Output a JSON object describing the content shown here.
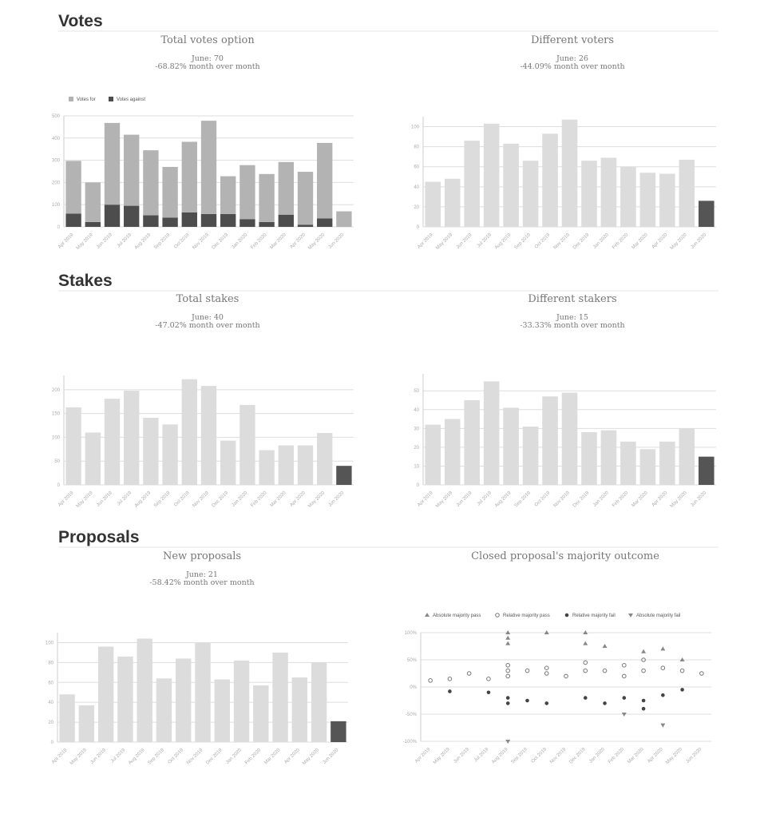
{
  "sections": [
    "Votes",
    "Stakes",
    "Proposals"
  ],
  "chart_data": [
    {
      "type": "stacked-bar",
      "title": "Total votes option",
      "annotations": [
        "June: 70",
        "-68.82% month over month"
      ],
      "categories": [
        "Apr 2019",
        "May 2019",
        "Jun 2019",
        "Jul 2019",
        "Aug 2019",
        "Sep 2019",
        "Oct 2019",
        "Nov 2019",
        "Dec 2019",
        "Jan 2020",
        "Feb 2020",
        "Mar 2020",
        "Apr 2020",
        "May 2020",
        "Jun 2020"
      ],
      "series": [
        {
          "name": "Votes for",
          "color": "#b3b3b3",
          "values": [
            237,
            178,
            368,
            320,
            293,
            228,
            318,
            420,
            170,
            243,
            216,
            237,
            238,
            340,
            70
          ]
        },
        {
          "name": "Votes against",
          "color": "#4d4d4d",
          "values": [
            60,
            22,
            100,
            95,
            52,
            42,
            65,
            58,
            58,
            35,
            22,
            55,
            10,
            38,
            0
          ]
        }
      ],
      "ylim": [
        0,
        500
      ],
      "yticks": [
        0,
        100,
        200,
        300,
        400,
        500
      ],
      "grid": true,
      "legend": "top-left"
    },
    {
      "type": "bar",
      "title": "Different voters",
      "annotations": [
        "June: 26",
        "-44.09% month over month"
      ],
      "categories": [
        "Apr 2019",
        "May 2019",
        "Jun 2019",
        "Jul 2019",
        "Aug 2019",
        "Sep 2019",
        "Oct 2019",
        "Nov 2019",
        "Dec 2019",
        "Jan 2020",
        "Feb 2020",
        "Mar 2020",
        "Apr 2020",
        "May 2020",
        "Jun 2020"
      ],
      "values": [
        45,
        48,
        86,
        103,
        83,
        66,
        93,
        107,
        66,
        69,
        60,
        54,
        53,
        67,
        26
      ],
      "color": "#dcdcdc",
      "last_color": "#555555",
      "ylim": [
        0,
        110
      ],
      "yticks": [
        0,
        20,
        40,
        60,
        80,
        100
      ],
      "grid": true
    },
    {
      "type": "bar",
      "title": "Total stakes",
      "annotations": [
        "June: 40",
        "-47.02% month over month"
      ],
      "categories": [
        "Apr 2019",
        "May 2019",
        "Jun 2019",
        "Jul 2019",
        "Aug 2019",
        "Sep 2019",
        "Oct 2019",
        "Nov 2019",
        "Dec 2019",
        "Jan 2020",
        "Feb 2020",
        "Mar 2020",
        "Apr 2020",
        "May 2020",
        "Jun 2020"
      ],
      "values": [
        163,
        110,
        181,
        198,
        141,
        127,
        222,
        208,
        93,
        168,
        73,
        83,
        83,
        109,
        40
      ],
      "color": "#dcdcdc",
      "last_color": "#555555",
      "ylim": [
        0,
        230
      ],
      "yticks": [
        0,
        50,
        100,
        150,
        200
      ],
      "grid": true
    },
    {
      "type": "bar",
      "title": "Different stakers",
      "annotations": [
        "June: 15",
        "-33.33% month over month"
      ],
      "categories": [
        "Apr 2019",
        "May 2019",
        "Jun 2019",
        "Jul 2019",
        "Aug 2019",
        "Sep 2019",
        "Oct 2019",
        "Nov 2019",
        "Dec 2019",
        "Jan 2020",
        "Feb 2020",
        "Mar 2020",
        "Apr 2020",
        "May 2020",
        "Jun 2020"
      ],
      "values": [
        32,
        35,
        45,
        55,
        41,
        31,
        47,
        49,
        28,
        29,
        23,
        19,
        23,
        30,
        15
      ],
      "color": "#dcdcdc",
      "last_color": "#555555",
      "ylim": [
        0,
        59
      ],
      "yticks": [
        0,
        10,
        20,
        30,
        40,
        50
      ],
      "grid": true
    },
    {
      "type": "bar",
      "title": "New proposals",
      "annotations": [
        "June: 21",
        "-58.42% month over month"
      ],
      "categories": [
        "Apr 2019",
        "May 2019",
        "Jun 2019",
        "Jul 2019",
        "Aug 2019",
        "Sep 2019",
        "Oct 2019",
        "Nov 2019",
        "Dec 2019",
        "Jan 2020",
        "Feb 2020",
        "Mar 2020",
        "Apr 2020",
        "May 2020",
        "Jun 2020"
      ],
      "values": [
        48,
        37,
        96,
        86,
        104,
        64,
        84,
        100,
        63,
        82,
        57,
        90,
        65,
        80,
        21
      ],
      "color": "#dcdcdc",
      "last_color": "#555555",
      "ylim": [
        0,
        110
      ],
      "yticks": [
        0,
        20,
        40,
        60,
        80,
        100
      ],
      "grid": true
    },
    {
      "type": "scatter",
      "title": "Closed proposal's majority outcome",
      "categories": [
        "Apr 2019",
        "May 2019",
        "Jun 2019",
        "Jul 2019",
        "Aug 2019",
        "Sep 2019",
        "Oct 2019",
        "Nov 2019",
        "Dec 2019",
        "Jan 2020",
        "Feb 2020",
        "Mar 2020",
        "Apr 2020",
        "May 2020",
        "Jun 2020"
      ],
      "series": [
        {
          "name": "Absolute majority pass",
          "color": "#888888",
          "marker": "triangle-up",
          "x": [
            "Aug 2019",
            "Aug 2019",
            "Aug 2019",
            "Oct 2019",
            "Dec 2019",
            "Dec 2019",
            "Jan 2020",
            "Mar 2020",
            "Apr 2020",
            "May 2020"
          ],
          "values": [
            100,
            90,
            80,
            100,
            100,
            80,
            75,
            65,
            70,
            50
          ]
        },
        {
          "name": "Relative majority pass",
          "color": "#777777",
          "marker": "circle-open",
          "x": [
            "Apr 2019",
            "May 2019",
            "Jun 2019",
            "Jul 2019",
            "Aug 2019",
            "Aug 2019",
            "Aug 2019",
            "Sep 2019",
            "Oct 2019",
            "Oct 2019",
            "Nov 2019",
            "Dec 2019",
            "Dec 2019",
            "Jan 2020",
            "Feb 2020",
            "Feb 2020",
            "Mar 2020",
            "Mar 2020",
            "Apr 2020",
            "May 2020",
            "Jun 2020"
          ],
          "values": [
            12,
            15,
            25,
            15,
            40,
            30,
            20,
            30,
            35,
            25,
            20,
            45,
            30,
            30,
            40,
            20,
            50,
            30,
            35,
            30,
            25
          ]
        },
        {
          "name": "Relative majority fail",
          "color": "#444444",
          "marker": "circle",
          "x": [
            "May 2019",
            "Jul 2019",
            "Aug 2019",
            "Aug 2019",
            "Sep 2019",
            "Oct 2019",
            "Dec 2019",
            "Jan 2020",
            "Feb 2020",
            "Mar 2020",
            "Mar 2020",
            "Apr 2020",
            "May 2020"
          ],
          "values": [
            -8,
            -10,
            -20,
            -30,
            -25,
            -30,
            -20,
            -30,
            -20,
            -40,
            -25,
            -15,
            -5
          ]
        },
        {
          "name": "Absolute majority fail",
          "color": "#888888",
          "marker": "triangle-down",
          "x": [
            "Aug 2019",
            "Feb 2020",
            "Apr 2020"
          ],
          "values": [
            -100,
            -50,
            -70
          ]
        }
      ],
      "ylim": [
        -100,
        100
      ],
      "yticks": [
        {
          "value": -100,
          "label": "-100%"
        },
        {
          "value": -50,
          "label": "-50%"
        },
        {
          "value": 0,
          "label": "0%"
        },
        {
          "value": 50,
          "label": "50%"
        },
        {
          "value": 100,
          "label": "100%"
        }
      ],
      "grid": true,
      "legend": "top"
    }
  ]
}
